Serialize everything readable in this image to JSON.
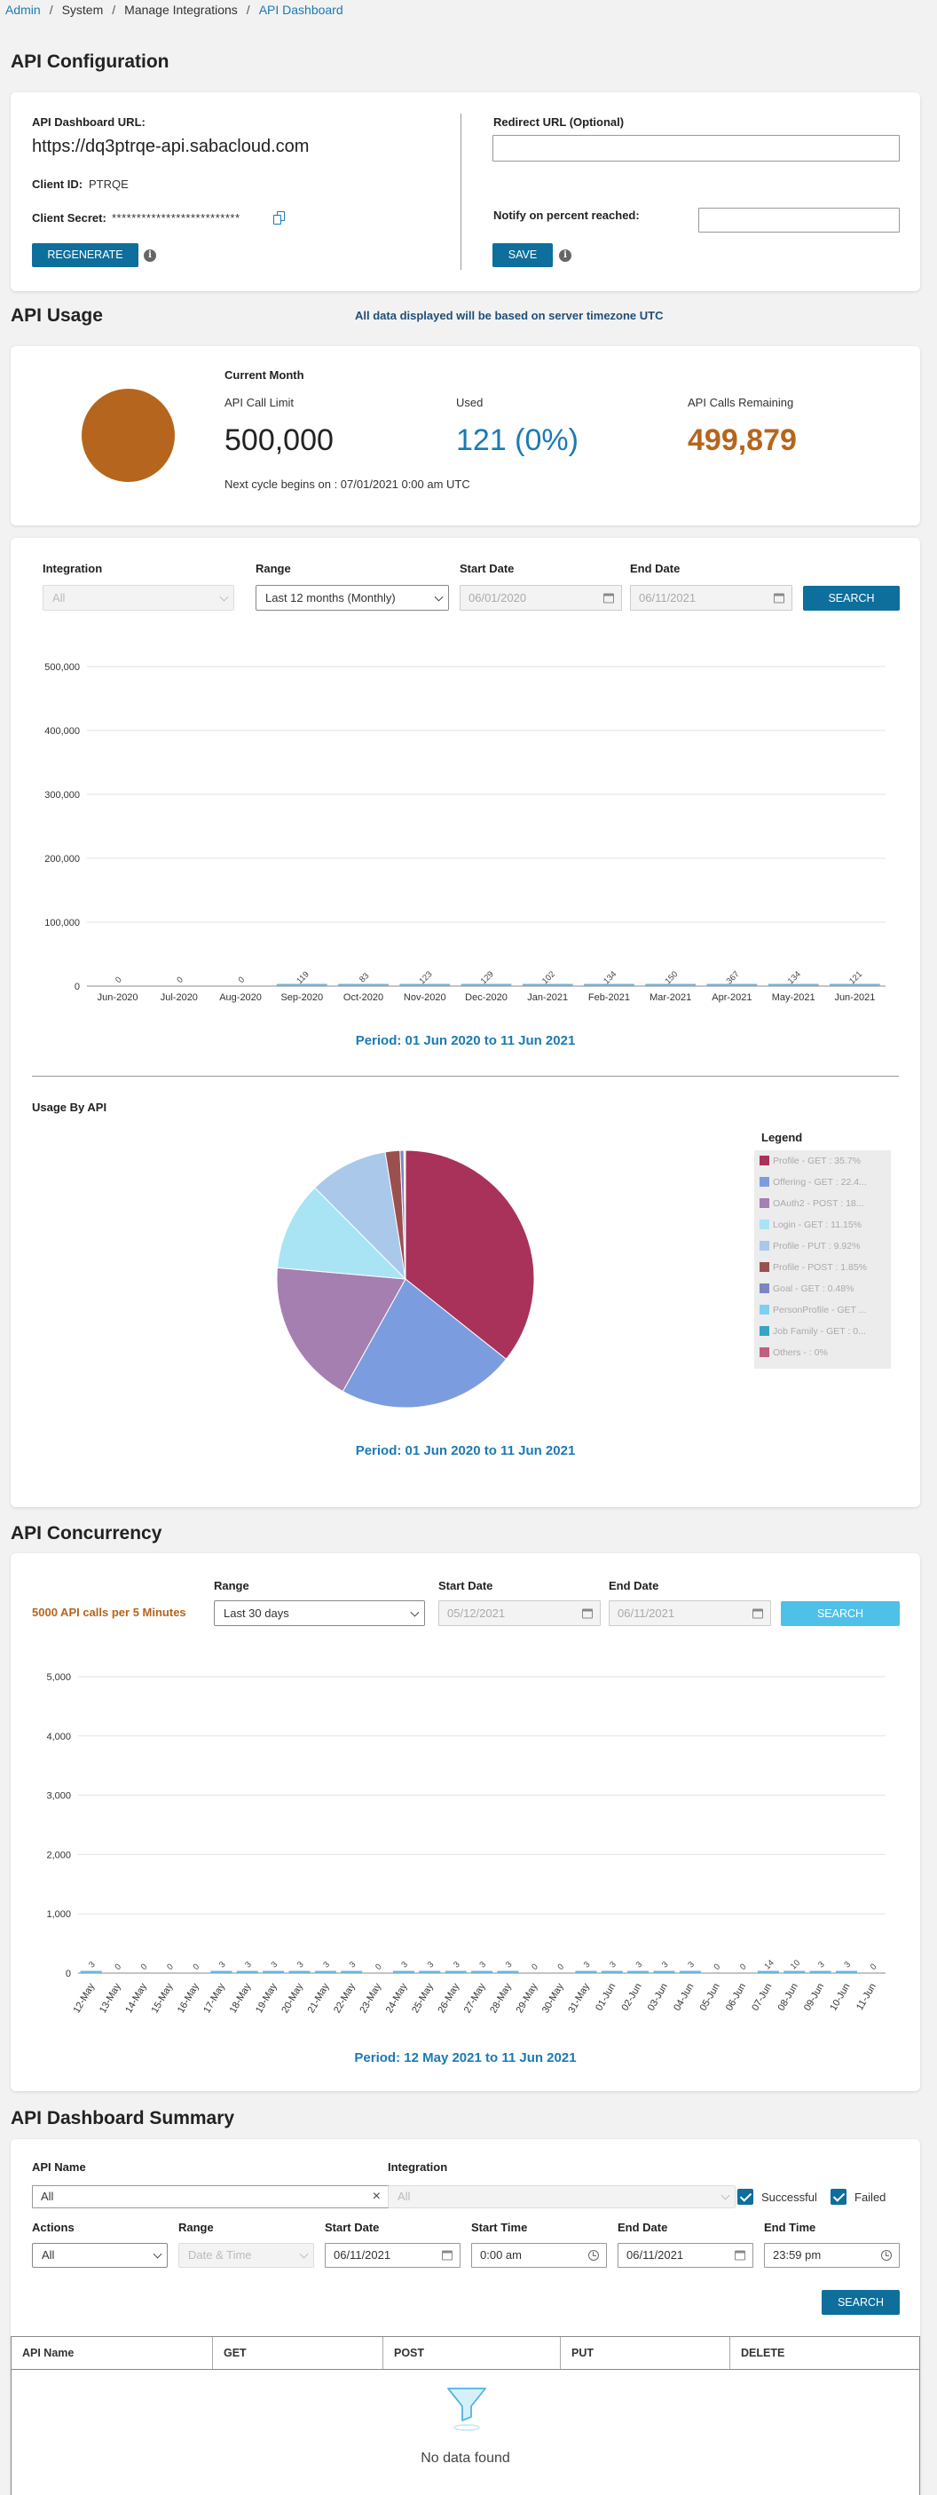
{
  "breadcrumb": {
    "admin": "Admin",
    "system": "System",
    "manage": "Manage Integrations",
    "current": "API Dashboard"
  },
  "config": {
    "title": "API Configuration",
    "url_label": "API Dashboard URL:",
    "url_value": "https://dq3ptrqe-api.sabacloud.com",
    "client_id_label": "Client ID:",
    "client_id_value": "PTRQE",
    "client_secret_label": "Client Secret:",
    "client_secret_value": "**************************",
    "regenerate_label": "REGENERATE",
    "redirect_label": "Redirect URL (Optional)",
    "redirect_value": "",
    "notify_label": "Notify on percent reached:",
    "notify_value": "",
    "save_label": "SAVE"
  },
  "usage": {
    "title": "API Usage",
    "timezone_note": "All data displayed will be based on server timezone UTC",
    "current_month": "Current Month",
    "limit_label": "API Call Limit",
    "limit_value": "500,000",
    "used_label": "Used",
    "used_value": "121 (0%)",
    "remaining_label": "API Calls Remaining",
    "remaining_value": "499,879",
    "next_cycle": "Next cycle begins on : 07/01/2021 0:00 am UTC",
    "used_fraction": 0.000242
  },
  "filters": {
    "integration_label": "Integration",
    "integration_value": "All",
    "range_label": "Range",
    "range_value": "Last 12 months (Monthly)",
    "start_label": "Start Date",
    "start_value": "06/01/2020",
    "end_label": "End Date",
    "end_value": "06/11/2021",
    "search_label": "SEARCH"
  },
  "monthly_period": "Period: 01 Jun 2020 to 11 Jun 2021",
  "pie_title": "Usage By API",
  "legend_title": "Legend",
  "pie_period": "Period: 01 Jun 2020 to 11 Jun 2021",
  "concurrency": {
    "title": "API Concurrency",
    "limit_text": "5000 API calls per 5 Minutes",
    "range_label": "Range",
    "range_value": "Last 30 days",
    "start_label": "Start Date",
    "start_value": "05/12/2021",
    "end_label": "End Date",
    "end_value": "06/11/2021",
    "search_label": "SEARCH",
    "period": "Period: 12 May 2021 to 11 Jun 2021"
  },
  "summary": {
    "title": "API Dashboard Summary",
    "api_name_label": "API Name",
    "api_name_value": "All",
    "integration_label": "Integration",
    "integration_value": "All",
    "successful_label": "Successful",
    "failed_label": "Failed",
    "actions_label": "Actions",
    "actions_value": "All",
    "range_label": "Range",
    "range_value": "Date & Time",
    "start_date_label": "Start Date",
    "start_date_value": "06/11/2021",
    "start_time_label": "Start Time",
    "start_time_value": "0:00 am",
    "end_date_label": "End Date",
    "end_date_value": "06/11/2021",
    "end_time_label": "End Time",
    "end_time_value": "23:59 pm",
    "search_label": "SEARCH",
    "columns": [
      "API Name",
      "GET",
      "POST",
      "PUT",
      "DELETE"
    ],
    "empty_text": "No data found"
  },
  "colors": {
    "primary": "#0e6e9c",
    "accent_blue": "#1a7ab5",
    "orange": "#b5651d"
  },
  "chart_data": [
    {
      "type": "bar",
      "categories": [
        "Jun-2020",
        "Jul-2020",
        "Aug-2020",
        "Sep-2020",
        "Oct-2020",
        "Nov-2020",
        "Dec-2020",
        "Jan-2021",
        "Feb-2021",
        "Mar-2021",
        "Apr-2021",
        "May-2021",
        "Jun-2021"
      ],
      "values": [
        0,
        0,
        0,
        119,
        83,
        123,
        129,
        102,
        134,
        150,
        367,
        134,
        121
      ],
      "ylim": [
        0,
        500000
      ],
      "yticks": [
        "0",
        "100,000",
        "200,000",
        "300,000",
        "400,000",
        "500,000"
      ],
      "ytick_values": [
        0,
        100000,
        200000,
        300000,
        400000,
        500000
      ],
      "grid": true
    },
    {
      "type": "pie",
      "labels": [
        "Profile - GET : 35.7%",
        "Offering - GET : 22.4...",
        "OAuth2 - POST : 18...",
        "Login - GET : 11.15%",
        "Profile - PUT : 9.92%",
        "Profile - POST : 1.85%",
        "Goal - GET : 0.48%",
        "PersonProfile - GET ...",
        "Job Family - GET : 0...",
        "Others - : 0%"
      ],
      "values": [
        35.7,
        22.4,
        18.3,
        11.15,
        9.92,
        1.85,
        0.48,
        0.15,
        0.05,
        0
      ],
      "colors": [
        "#a8325a",
        "#7b9de0",
        "#a57fb0",
        "#a9e4f5",
        "#a9c8ea",
        "#9b5050",
        "#7c85c4",
        "#7fcff0",
        "#3aa3c4",
        "#c06080"
      ]
    },
    {
      "type": "bar",
      "categories": [
        "12-May",
        "13-May",
        "14-May",
        "15-May",
        "16-May",
        "17-May",
        "18-May",
        "19-May",
        "20-May",
        "21-May",
        "22-May",
        "23-May",
        "24-May",
        "25-May",
        "26-May",
        "27-May",
        "28-May",
        "29-May",
        "30-May",
        "31-May",
        "01-Jun",
        "02-Jun",
        "03-Jun",
        "04-Jun",
        "05-Jun",
        "06-Jun",
        "07-Jun",
        "08-Jun",
        "09-Jun",
        "10-Jun",
        "11-Jun"
      ],
      "values": [
        3,
        0,
        0,
        0,
        0,
        3,
        3,
        3,
        3,
        3,
        3,
        0,
        3,
        3,
        3,
        3,
        3,
        0,
        0,
        3,
        3,
        3,
        3,
        3,
        0,
        0,
        14,
        10,
        3,
        3,
        0
      ],
      "ylim": [
        0,
        5000
      ],
      "yticks": [
        "0",
        "1,000",
        "2,000",
        "3,000",
        "4,000",
        "5,000"
      ],
      "ytick_values": [
        0,
        1000,
        2000,
        3000,
        4000,
        5000
      ],
      "grid": true
    }
  ]
}
